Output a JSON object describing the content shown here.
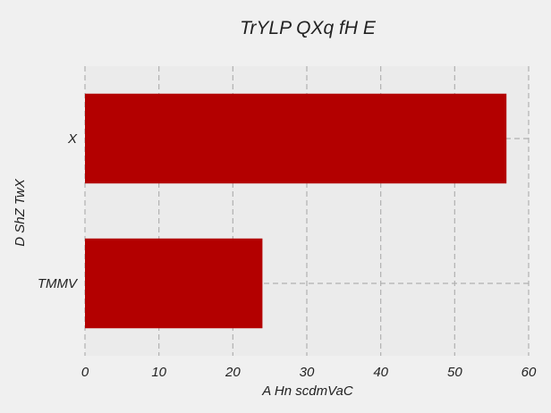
{
  "chart_data": {
    "type": "bar",
    "orientation": "horizontal",
    "title": "TrYLP QXq fH E",
    "xlabel": "A Hn scdmVaC",
    "ylabel": "D ShZ TwX",
    "categories": [
      "X",
      "TMMV"
    ],
    "values": [
      57,
      24
    ],
    "xlim": [
      0,
      60
    ],
    "xticks": [
      0,
      10,
      20,
      30,
      40,
      50,
      60
    ],
    "grid": true,
    "bar_color": "#b30000"
  }
}
